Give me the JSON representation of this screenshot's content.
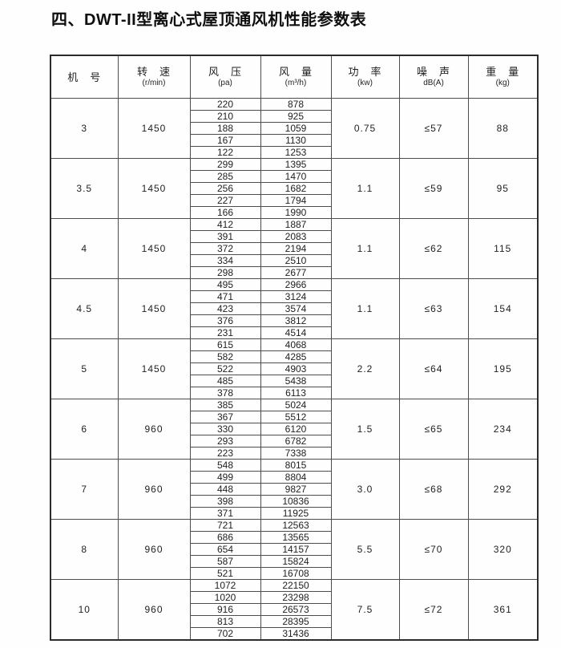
{
  "title": "四、DWT-II型离心式屋顶通风机性能参数表",
  "table": {
    "columns": [
      {
        "label": "机　号",
        "unit": ""
      },
      {
        "label": "转　速",
        "unit": "(r/min)"
      },
      {
        "label": "风　压",
        "unit": "(pa)"
      },
      {
        "label": "风　量",
        "unit": "(m³/h)"
      },
      {
        "label": "功　率",
        "unit": "(kw)"
      },
      {
        "label": "噪　声",
        "unit": "dB(A)"
      },
      {
        "label": "重　量",
        "unit": "(kg)"
      }
    ],
    "groups": [
      {
        "model": "3",
        "rpm": "1450",
        "power": "0.75",
        "noise": "≤57",
        "weight": "88",
        "rows": [
          [
            "220",
            "878"
          ],
          [
            "210",
            "925"
          ],
          [
            "188",
            "1059"
          ],
          [
            "167",
            "1130"
          ],
          [
            "122",
            "1253"
          ]
        ]
      },
      {
        "model": "3.5",
        "rpm": "1450",
        "power": "1.1",
        "noise": "≤59",
        "weight": "95",
        "rows": [
          [
            "299",
            "1395"
          ],
          [
            "285",
            "1470"
          ],
          [
            "256",
            "1682"
          ],
          [
            "227",
            "1794"
          ],
          [
            "166",
            "1990"
          ]
        ]
      },
      {
        "model": "4",
        "rpm": "1450",
        "power": "1.1",
        "noise": "≤62",
        "weight": "115",
        "rows": [
          [
            "412",
            "1887"
          ],
          [
            "391",
            "2083"
          ],
          [
            "372",
            "2194"
          ],
          [
            "334",
            "2510"
          ],
          [
            "298",
            "2677"
          ]
        ]
      },
      {
        "model": "4.5",
        "rpm": "1450",
        "power": "1.1",
        "noise": "≤63",
        "weight": "154",
        "rows": [
          [
            "495",
            "2966"
          ],
          [
            "471",
            "3124"
          ],
          [
            "423",
            "3574"
          ],
          [
            "376",
            "3812"
          ],
          [
            "231",
            "4514"
          ]
        ]
      },
      {
        "model": "5",
        "rpm": "1450",
        "power": "2.2",
        "noise": "≤64",
        "weight": "195",
        "rows": [
          [
            "615",
            "4068"
          ],
          [
            "582",
            "4285"
          ],
          [
            "522",
            "4903"
          ],
          [
            "485",
            "5438"
          ],
          [
            "378",
            "6113"
          ]
        ]
      },
      {
        "model": "6",
        "rpm": "960",
        "power": "1.5",
        "noise": "≤65",
        "weight": "234",
        "rows": [
          [
            "385",
            "5024"
          ],
          [
            "367",
            "5512"
          ],
          [
            "330",
            "6120"
          ],
          [
            "293",
            "6782"
          ],
          [
            "223",
            "7338"
          ]
        ]
      },
      {
        "model": "7",
        "rpm": "960",
        "power": "3.0",
        "noise": "≤68",
        "weight": "292",
        "rows": [
          [
            "548",
            "8015"
          ],
          [
            "499",
            "8804"
          ],
          [
            "448",
            "9827"
          ],
          [
            "398",
            "10836"
          ],
          [
            "371",
            "11925"
          ]
        ]
      },
      {
        "model": "8",
        "rpm": "960",
        "power": "5.5",
        "noise": "≤70",
        "weight": "320",
        "rows": [
          [
            "721",
            "12563"
          ],
          [
            "686",
            "13565"
          ],
          [
            "654",
            "14157"
          ],
          [
            "587",
            "15824"
          ],
          [
            "521",
            "16708"
          ]
        ]
      },
      {
        "model": "10",
        "rpm": "960",
        "power": "7.5",
        "noise": "≤72",
        "weight": "361",
        "rows": [
          [
            "1072",
            "22150"
          ],
          [
            "1020",
            "23298"
          ],
          [
            "916",
            "26573"
          ],
          [
            "813",
            "28395"
          ],
          [
            "702",
            "31436"
          ]
        ]
      }
    ]
  }
}
